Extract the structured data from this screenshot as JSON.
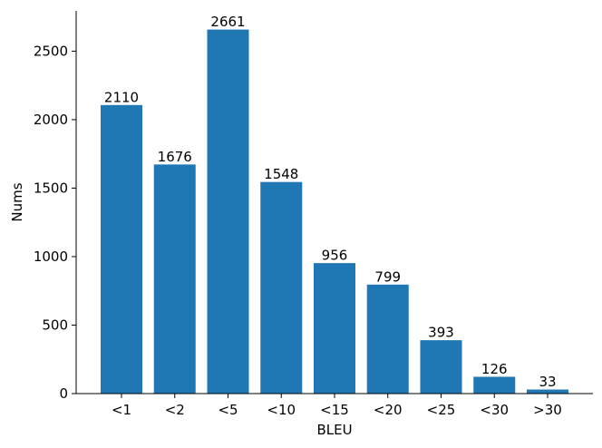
{
  "chart_data": {
    "type": "bar",
    "xlabel": "BLEU",
    "ylabel": "Nums",
    "categories": [
      "<1",
      "<2",
      "<5",
      "<10",
      "<15",
      "<20",
      "<25",
      "<30",
      ">30"
    ],
    "values": [
      2110,
      1676,
      2661,
      1548,
      956,
      799,
      393,
      126,
      33
    ],
    "color": "#1f77b4",
    "ylim": [
      0,
      2794
    ],
    "yticks": [
      0,
      500,
      1000,
      1500,
      2000,
      2500
    ]
  }
}
